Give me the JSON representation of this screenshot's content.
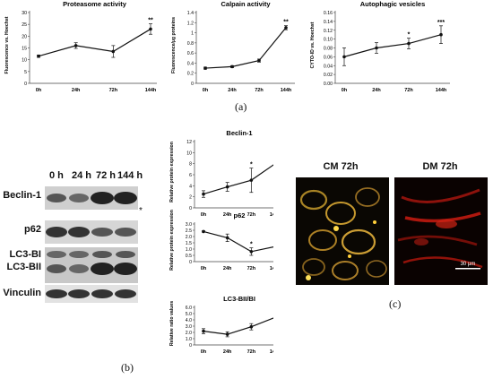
{
  "panel_labels": {
    "a": "(a)",
    "b": "(b)",
    "c": "(c)"
  },
  "blot": {
    "headers": [
      "0 h",
      "24 h",
      "72 h",
      "144 h"
    ],
    "rows": [
      "Beclin-1",
      "p62",
      "LC3-BI",
      "LC3-BII",
      "Vinculin"
    ],
    "asterisk": "*"
  },
  "micrographs": {
    "left_title": "CM 72h",
    "right_title": "DM 72h",
    "scale_bar": "30 µm"
  },
  "chart_data": [
    {
      "id": "proteasome",
      "type": "line",
      "title": "Proteasome activity",
      "ylabel": "Fluorescence vs. Hoechst",
      "categories": [
        "0h",
        "24h",
        "72h",
        "144h"
      ],
      "values": [
        11.5,
        16,
        13.5,
        23
      ],
      "errors": [
        0.5,
        1.2,
        2.5,
        2.2
      ],
      "ylim": [
        0,
        30
      ],
      "yticks": [
        0,
        5,
        10,
        15,
        20,
        25,
        30
      ],
      "yticklabels": [
        "0",
        "5",
        "10",
        "15",
        "20",
        "25",
        "30"
      ],
      "annotations": [
        "",
        "",
        "",
        "**"
      ]
    },
    {
      "id": "calpain",
      "type": "line",
      "title": "Calpain activity",
      "ylabel": "Fluorescence/µg proteins",
      "categories": [
        "0h",
        "24h",
        "72h",
        "144h"
      ],
      "values": [
        0.3,
        0.33,
        0.45,
        1.1
      ],
      "errors": [
        0.02,
        0.02,
        0.03,
        0.04
      ],
      "ylim": [
        0,
        1.4
      ],
      "yticks": [
        0,
        0.2,
        0.4,
        0.6,
        0.8,
        1.0,
        1.2,
        1.4
      ],
      "yticklabels": [
        "0",
        "0.2",
        "0.4",
        "0.6",
        "0.8",
        "1",
        "1.2",
        "1.4"
      ],
      "annotations": [
        "",
        "",
        "",
        "**"
      ]
    },
    {
      "id": "autophagic",
      "type": "line",
      "title": "Autophagic vesicles",
      "ylabel": "CYTO-ID vs. Hoechst",
      "categories": [
        "0h",
        "24h",
        "72h",
        "144h"
      ],
      "values": [
        0.06,
        0.08,
        0.09,
        0.11
      ],
      "errors": [
        0.02,
        0.012,
        0.012,
        0.02
      ],
      "ylim": [
        0,
        0.16
      ],
      "yticks": [
        0,
        0.02,
        0.04,
        0.06,
        0.08,
        0.1,
        0.12,
        0.14,
        0.16
      ],
      "yticklabels": [
        "0.00",
        "0.02",
        "0.04",
        "0.06",
        "0.08",
        "0.10",
        "0.12",
        "0.14",
        "0.16"
      ],
      "annotations": [
        "",
        "",
        "*",
        "***"
      ]
    },
    {
      "id": "beclin",
      "type": "line",
      "title": "Beclin-1",
      "ylabel": "Relative protein expression",
      "categories": [
        "0h",
        "24h",
        "72h",
        "144h"
      ],
      "values": [
        2.5,
        3.8,
        5.0,
        8.0
      ],
      "errors": [
        0.6,
        0.8,
        2.2,
        1.6
      ],
      "ylim": [
        0,
        12
      ],
      "yticks": [
        0,
        2,
        4,
        6,
        8,
        10,
        12
      ],
      "yticklabels": [
        "0",
        "2",
        "4",
        "6",
        "8",
        "10",
        "12"
      ],
      "annotations": [
        "",
        "",
        "*",
        "*"
      ]
    },
    {
      "id": "p62",
      "type": "line",
      "title": "p62",
      "ylabel": "Relative protein expression",
      "categories": [
        "0h",
        "24h",
        "72h",
        "144h"
      ],
      "values": [
        2.4,
        1.9,
        0.8,
        1.2
      ],
      "errors": [
        0.05,
        0.3,
        0.3,
        0.2
      ],
      "ylim": [
        0,
        3
      ],
      "yticks": [
        0,
        0.5,
        1,
        1.5,
        2,
        2.5,
        3
      ],
      "yticklabels": [
        "0",
        "0.5",
        "1.0",
        "1.5",
        "2.0",
        "2.5",
        "3.0"
      ],
      "annotations": [
        "",
        "",
        "*",
        "*"
      ]
    },
    {
      "id": "lc3",
      "type": "line",
      "title": "LC3-BII/BI",
      "ylabel": "Relative ratio values",
      "categories": [
        "0h",
        "24h",
        "72h",
        "144h"
      ],
      "values": [
        2.2,
        1.7,
        2.9,
        4.4
      ],
      "errors": [
        0.4,
        0.4,
        0.5,
        0.8
      ],
      "ylim": [
        0,
        6
      ],
      "yticks": [
        0,
        1,
        2,
        3,
        4,
        5,
        6
      ],
      "yticklabels": [
        "0",
        "1.0",
        "2.0",
        "3.0",
        "4.0",
        "5.0",
        "6.0"
      ],
      "annotations": [
        "",
        "",
        "",
        "*"
      ]
    }
  ]
}
